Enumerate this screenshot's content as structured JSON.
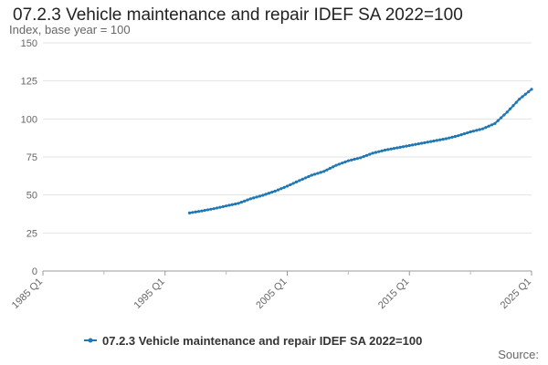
{
  "chart_data": {
    "type": "line",
    "title": "07.2.3 Vehicle maintenance and repair IDEF SA 2022=100",
    "ylabel": "Index, base year = 100",
    "xlabel": "",
    "ylim": [
      0,
      150
    ],
    "yticks": [
      0,
      25,
      50,
      75,
      100,
      125,
      150
    ],
    "xlim": [
      "1985 Q1",
      "2025 Q1"
    ],
    "xticks": [
      "1985 Q1",
      "1995 Q1",
      "2005 Q1",
      "2015 Q1",
      "2025 Q1"
    ],
    "grid": true,
    "legend_position": "bottom",
    "series": [
      {
        "name": "07.2.3 Vehicle maintenance and repair IDEF SA 2022=100",
        "color": "#1f78b4",
        "points": [
          [
            "1997 Q1",
            38.2
          ],
          [
            "1998 Q1",
            39.5
          ],
          [
            "1999 Q1",
            41.0
          ],
          [
            "2000 Q1",
            42.8
          ],
          [
            "2001 Q1",
            44.5
          ],
          [
            "2002 Q1",
            47.5
          ],
          [
            "2003 Q1",
            49.8
          ],
          [
            "2004 Q1",
            52.5
          ],
          [
            "2005 Q1",
            55.8
          ],
          [
            "2006 Q1",
            59.5
          ],
          [
            "2007 Q1",
            63.0
          ],
          [
            "2008 Q1",
            65.5
          ],
          [
            "2009 Q1",
            69.5
          ],
          [
            "2010 Q1",
            72.5
          ],
          [
            "2011 Q1",
            74.5
          ],
          [
            "2012 Q1",
            77.5
          ],
          [
            "2013 Q1",
            79.5
          ],
          [
            "2014 Q1",
            81.0
          ],
          [
            "2015 Q1",
            82.5
          ],
          [
            "2016 Q1",
            84.0
          ],
          [
            "2017 Q1",
            85.5
          ],
          [
            "2018 Q1",
            87.0
          ],
          [
            "2019 Q1",
            89.0
          ],
          [
            "2020 Q1",
            91.5
          ],
          [
            "2021 Q1",
            93.5
          ],
          [
            "2022 Q1",
            97.0
          ],
          [
            "2023 Q1",
            104.5
          ],
          [
            "2024 Q1",
            113.0
          ],
          [
            "2025 Q1",
            119.5
          ]
        ]
      }
    ]
  },
  "source_label": "Source:"
}
